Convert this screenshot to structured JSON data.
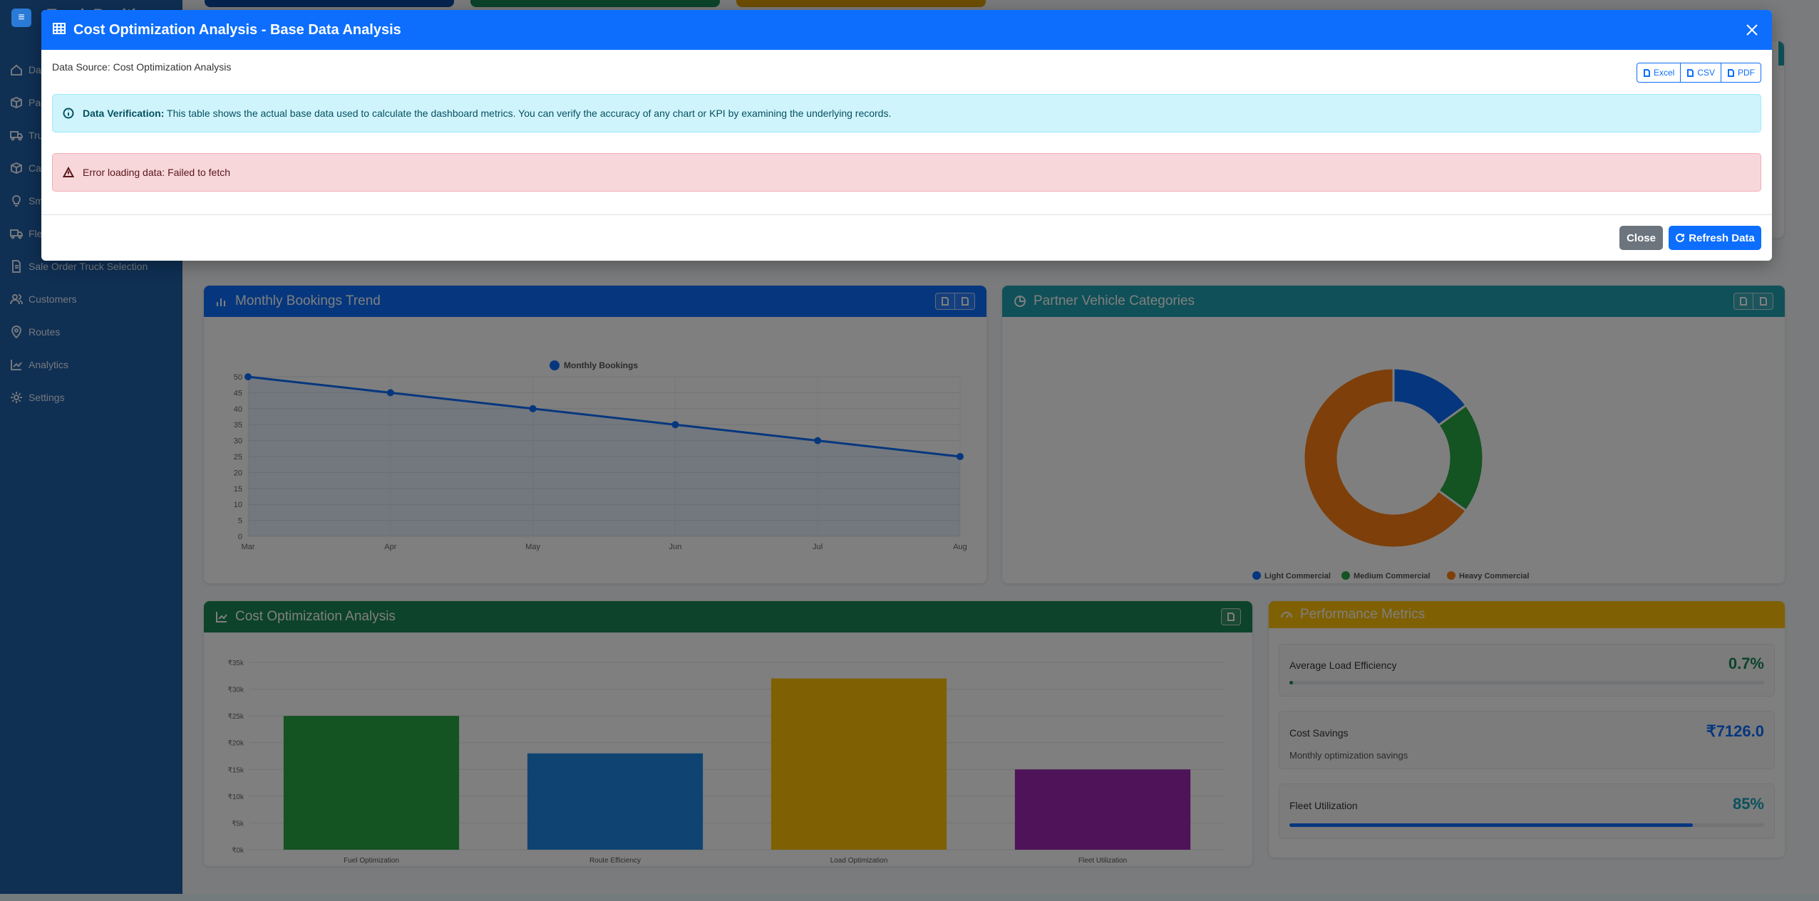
{
  "app": {
    "brand": "Truck Position"
  },
  "sidebar": {
    "items": [
      {
        "label": "Dashboard",
        "icon": "home-icon"
      },
      {
        "label": "Packages",
        "icon": "box-icon"
      },
      {
        "label": "Trucks",
        "icon": "truck-icon"
      },
      {
        "label": "Cargo",
        "icon": "box-icon"
      },
      {
        "label": "Smart Suggestions",
        "icon": "lightbulb-icon"
      },
      {
        "label": "Fleet",
        "icon": "truck-icon"
      },
      {
        "label": "Sale Order Truck Selection",
        "icon": "document-icon"
      },
      {
        "label": "Customers",
        "icon": "users-icon"
      },
      {
        "label": "Routes",
        "icon": "map-pin-icon"
      },
      {
        "label": "Analytics",
        "icon": "chart-line-icon"
      },
      {
        "label": "Settings",
        "icon": "gear-icon"
      }
    ]
  },
  "cards": {
    "bookings": {
      "title": "Monthly Bookings Trend",
      "color": "#0d6efd"
    },
    "vehicles": {
      "title": "Partner Vehicle Categories",
      "color": "#20a0b0"
    },
    "cost": {
      "title": "Cost Optimization Analysis",
      "color": "#198754"
    },
    "performance": {
      "title": "Performance Metrics",
      "color": "#ffc107",
      "metrics": [
        {
          "label": "Average Load Efficiency",
          "value": "0.7%",
          "progress": 0.007,
          "color": "#198754"
        },
        {
          "label": "Cost Savings",
          "value": "₹7126.0",
          "subtitle": "Monthly optimization savings",
          "color": "#0d6efd"
        },
        {
          "label": "Fleet Utilization",
          "value": "85%",
          "progress": 0.85,
          "color": "#17a2b8"
        }
      ]
    }
  },
  "chart_data": [
    {
      "type": "line",
      "legend": [
        "Monthly Bookings"
      ],
      "x": [
        "Mar",
        "Apr",
        "May",
        "Jun",
        "Jul",
        "Aug"
      ],
      "series": [
        {
          "name": "Monthly Bookings",
          "values": [
            50,
            45,
            40,
            35,
            30,
            25
          ]
        }
      ],
      "ylim": [
        0,
        50
      ],
      "yticks": [
        0,
        5,
        10,
        15,
        20,
        25,
        30,
        35,
        40,
        45,
        50
      ],
      "color": "#0d6efd",
      "legend_position": "top"
    },
    {
      "type": "pie",
      "donut": true,
      "labels": [
        "Light Commercial",
        "Medium Commercial",
        "Heavy Commercial"
      ],
      "values": [
        15,
        20,
        65
      ],
      "colors": [
        "#0d6efd",
        "#28a745",
        "#fd7e14"
      ],
      "legend_position": "bottom"
    },
    {
      "type": "bar",
      "categories": [
        "Fuel Optimization",
        "Route Efficiency",
        "Load Optimization",
        "Fleet Utilization"
      ],
      "values": [
        25000,
        18000,
        32000,
        15000
      ],
      "ylim": [
        0,
        35000
      ],
      "yticks": [
        "₹0k",
        "₹5k",
        "₹10k",
        "₹15k",
        "₹20k",
        "₹25k",
        "₹30k",
        "₹35k"
      ],
      "colors": [
        "#28a745",
        "#1e88e5",
        "#ffc107",
        "#9c27b0"
      ]
    }
  ],
  "modal": {
    "title": "Cost Optimization Analysis - Base Data Analysis",
    "data_source": "Data Source: Cost Optimization Analysis",
    "export": {
      "excel": "Excel",
      "csv": "CSV",
      "pdf": "PDF"
    },
    "info_strong": "Data Verification:",
    "info_text": " This table shows the actual base data used to calculate the dashboard metrics. You can verify the accuracy of any chart or KPI by examining the underlying records.",
    "error_text": "Error loading data: Failed to fetch",
    "close_label": "Close",
    "refresh_label": "Refresh Data"
  }
}
